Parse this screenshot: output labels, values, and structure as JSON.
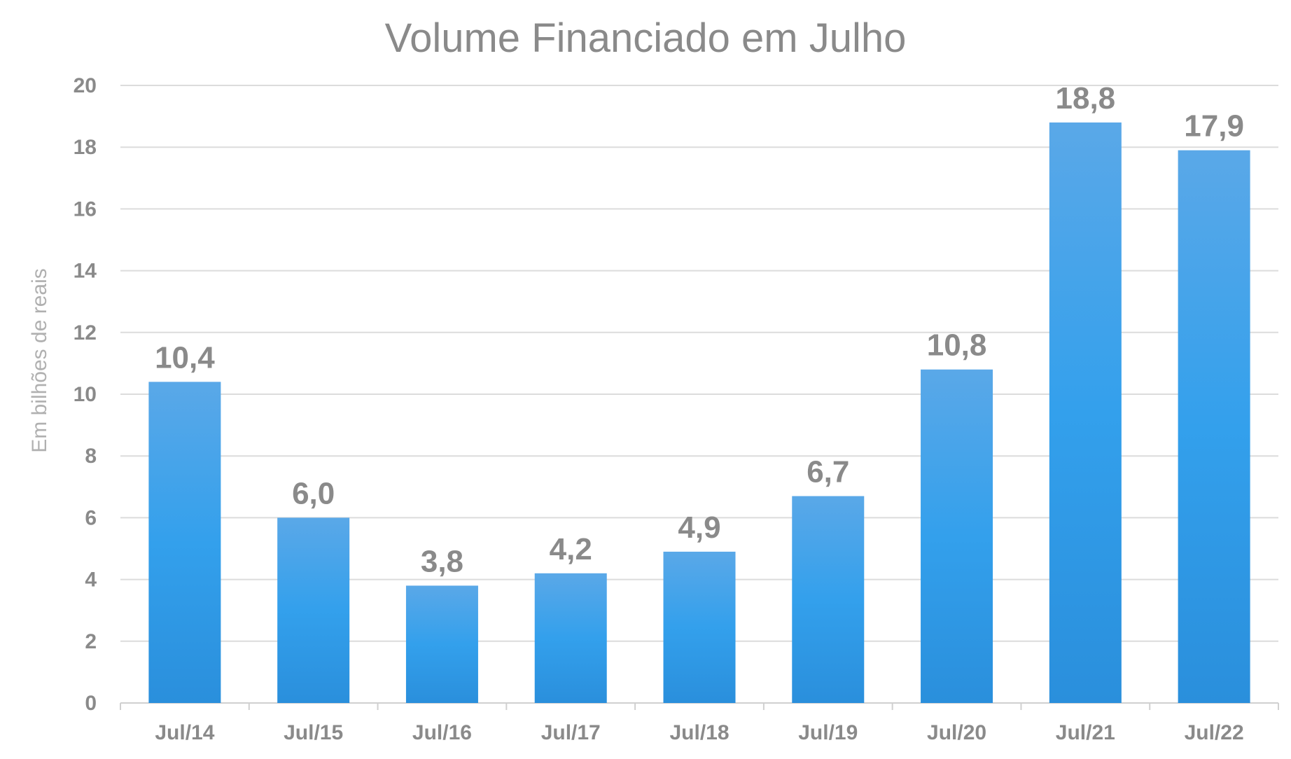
{
  "chart_data": {
    "type": "bar",
    "title": "Volume Financiado em Julho",
    "xlabel": "",
    "ylabel": "Em bilhões de reais",
    "categories": [
      "Jul/14",
      "Jul/15",
      "Jul/16",
      "Jul/17",
      "Jul/18",
      "Jul/19",
      "Jul/20",
      "Jul/21",
      "Jul/22"
    ],
    "values": [
      10.4,
      6.0,
      3.8,
      4.2,
      4.9,
      6.7,
      10.8,
      18.8,
      17.9
    ],
    "data_labels": [
      "10,4",
      "6,0",
      "3,8",
      "4,2",
      "4,9",
      "6,7",
      "10,8",
      "18,8",
      "17,9"
    ],
    "ylim": [
      0,
      20
    ],
    "yticks": [
      0,
      2,
      4,
      6,
      8,
      10,
      12,
      14,
      16,
      18,
      20
    ],
    "grid": true,
    "legend": "none",
    "colors": {
      "bar_top": "#5aa8e8",
      "bar_mid": "#33a0ec",
      "bar_bottom": "#2a8fdc",
      "text": "#8a8a8a",
      "axis_title": "#b0b0b0",
      "grid": "#dcdcdc"
    }
  }
}
